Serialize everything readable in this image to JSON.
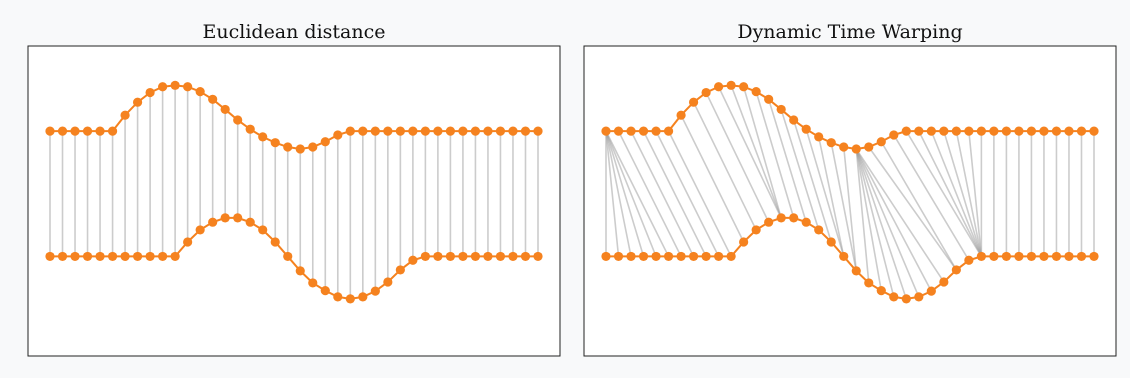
{
  "colors": {
    "series": "#f5821f",
    "link": "#9a9a9a",
    "frame": "#222222",
    "background": "#f8f9fa"
  },
  "panels": [
    {
      "id": "euclidean",
      "title": "Euclidean distance",
      "alignment": "euclidean"
    },
    {
      "id": "dtw",
      "title": "Dynamic Time Warping",
      "alignment": "dtw"
    }
  ],
  "chart_data": {
    "type": "line",
    "x": [
      0,
      1,
      2,
      3,
      4,
      5,
      6,
      7,
      8,
      9,
      10,
      11,
      12,
      13,
      14,
      15,
      16,
      17,
      18,
      19,
      20,
      21,
      22,
      23,
      24,
      25,
      26,
      27,
      28,
      29,
      30,
      31,
      32,
      33,
      34,
      35,
      36,
      37,
      38,
      39
    ],
    "ylim": [
      -1.9,
      4.2
    ],
    "series": [
      {
        "id": "top",
        "offset": 2.6,
        "values": [
          0,
          0,
          0,
          0,
          0,
          0,
          0.33,
          0.6,
          0.8,
          0.92,
          0.95,
          0.92,
          0.82,
          0.66,
          0.45,
          0.23,
          0.04,
          -0.12,
          -0.24,
          -0.33,
          -0.37,
          -0.33,
          -0.22,
          -0.08,
          0,
          0,
          0,
          0,
          0,
          0,
          0,
          0,
          0,
          0,
          0,
          0,
          0,
          0,
          0,
          0
        ]
      },
      {
        "id": "bottom",
        "offset": 0,
        "values": [
          0,
          0,
          0,
          0,
          0,
          0,
          0,
          0,
          0,
          0,
          0,
          0.3,
          0.55,
          0.71,
          0.8,
          0.8,
          0.71,
          0.55,
          0.3,
          0,
          -0.3,
          -0.55,
          -0.71,
          -0.84,
          -0.88,
          -0.84,
          -0.72,
          -0.53,
          -0.28,
          -0.08,
          0,
          0,
          0,
          0,
          0,
          0,
          0,
          0,
          0,
          0
        ]
      }
    ]
  }
}
